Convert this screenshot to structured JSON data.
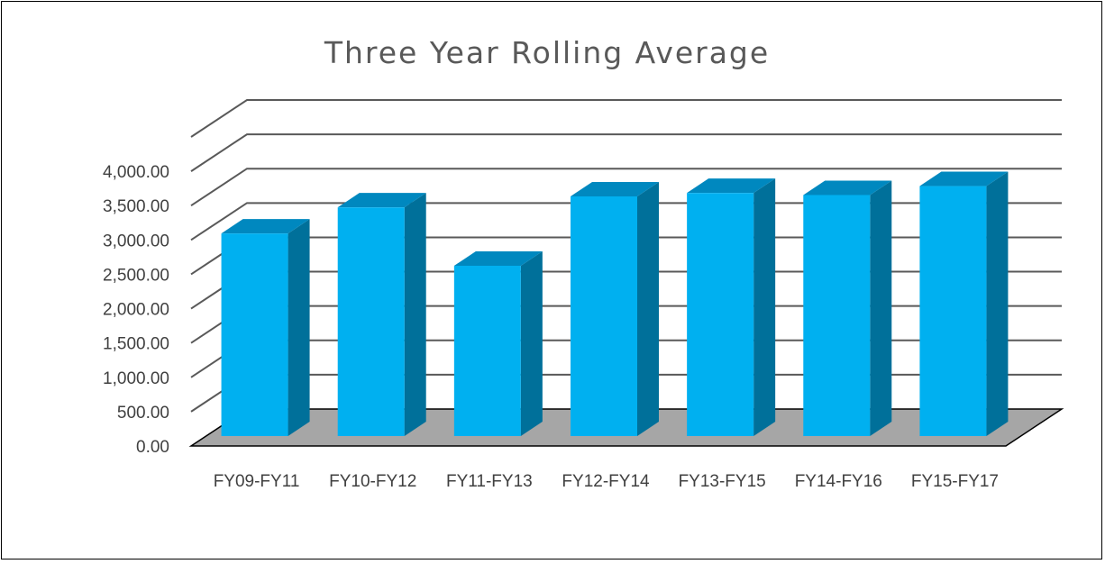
{
  "chart_data": {
    "type": "bar",
    "title": "Three Year Rolling Average",
    "categories": [
      "FY09-FY11",
      "FY10-FY12",
      "FY11-FY13",
      "FY12-FY14",
      "FY13-FY15",
      "FY14-FY16",
      "FY15-FY17"
    ],
    "values": [
      2950,
      3330,
      2480,
      3490,
      3540,
      3510,
      3640
    ],
    "yticks": [
      "0.00",
      "500.00",
      "1,000.00",
      "1,500.00",
      "2,000.00",
      "2,500.00",
      "3,000.00",
      "3,500.00",
      "4,000.00"
    ],
    "ylim": [
      0,
      4500
    ],
    "grid": true,
    "legend": "none",
    "colors": {
      "bar_front": "#00B0F0",
      "bar_side": "#00709A",
      "bar_top": "#0088BF",
      "floor": "#A6A6A6",
      "grid": "#595959"
    }
  }
}
